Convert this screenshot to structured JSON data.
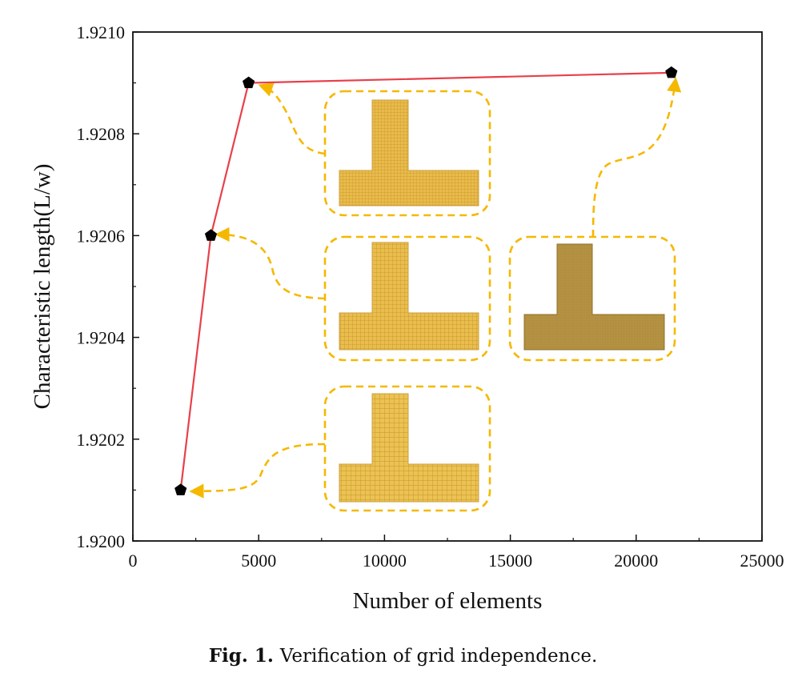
{
  "chart_data": {
    "type": "line",
    "xlabel": "Number of elements",
    "ylabel": "Characteristic length(L/w)",
    "xlim": [
      0,
      25000
    ],
    "ylim": [
      1.92,
      1.921
    ],
    "x_ticks": [
      "0",
      "5000",
      "10000",
      "15000",
      "20000",
      "25000"
    ],
    "y_ticks": [
      "1.9200",
      "1.9202",
      "1.9204",
      "1.9206",
      "1.9208",
      "1.9210"
    ],
    "grid": false,
    "series": [
      {
        "x": [
          1900,
          3100,
          4600,
          21400
        ],
        "y": [
          1.9201,
          1.9206,
          1.9209,
          1.92092
        ],
        "line_color": "#e8404a",
        "marker": "pentagon",
        "marker_color": "#000000"
      }
    ],
    "callout_color": "#f5b800",
    "mesh_color": "#e6b84a"
  },
  "caption": {
    "label": "Fig. 1.",
    "text": "Verification of grid independence."
  }
}
